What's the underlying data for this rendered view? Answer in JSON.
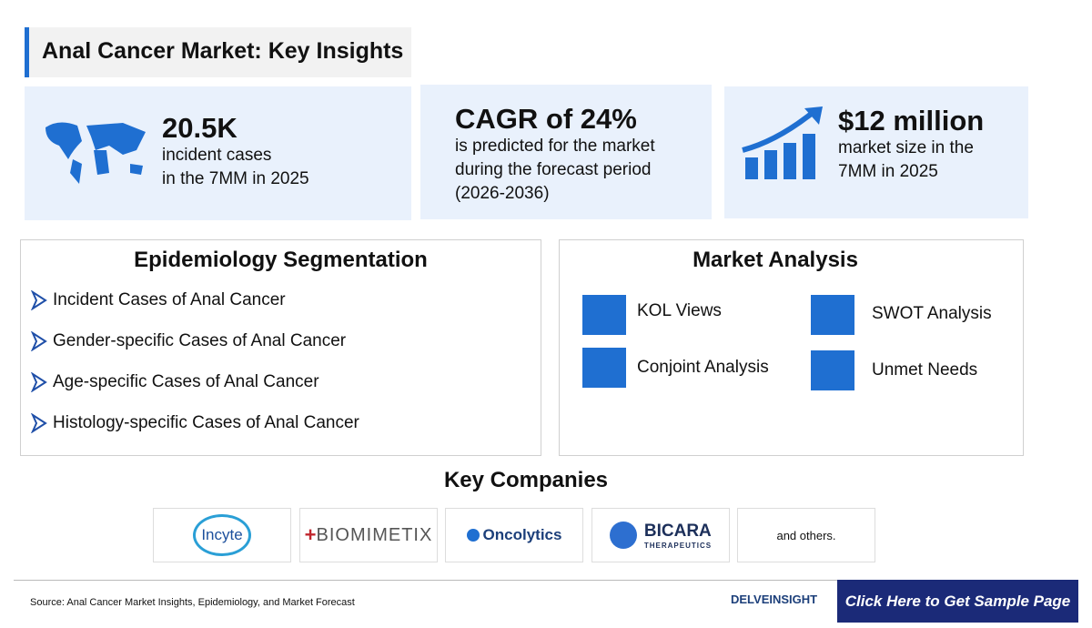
{
  "header": {
    "title": "Anal Cancer Market: Key Insights"
  },
  "stats": [
    {
      "headline": "20.5K",
      "lines": [
        "incident cases",
        "in the 7MM in 2025"
      ]
    },
    {
      "headline": "CAGR of 24%",
      "lines": [
        "is predicted for the market",
        "during the forecast period",
        "(2026-2036)"
      ]
    },
    {
      "headline": "$12 million",
      "lines": [
        "market size in the",
        "7MM in 2025"
      ]
    }
  ],
  "epidemiology": {
    "title": "Epidemiology Segmentation",
    "items": [
      "Incident Cases of Anal Cancer",
      "Gender-specific Cases of Anal Cancer",
      "Age-specific Cases of Anal Cancer",
      "Histology-specific Cases of Anal Cancer"
    ]
  },
  "market_analysis": {
    "title": "Market Analysis",
    "items": [
      "KOL Views",
      "SWOT Analysis",
      "Conjoint Analysis",
      "Unmet Needs"
    ]
  },
  "key_companies": {
    "title": "Key Companies",
    "companies": [
      "Incyte",
      "BIOMIMETIX",
      "Oncolytics",
      "BICARA",
      "THERAPEUTICS",
      "and others."
    ]
  },
  "footer": {
    "source": "Source: Anal Cancer Market Insights, Epidemiology, and Market Forecast",
    "brand": "DELVEINSIGHT",
    "button": "Click Here to Get Sample Page"
  }
}
